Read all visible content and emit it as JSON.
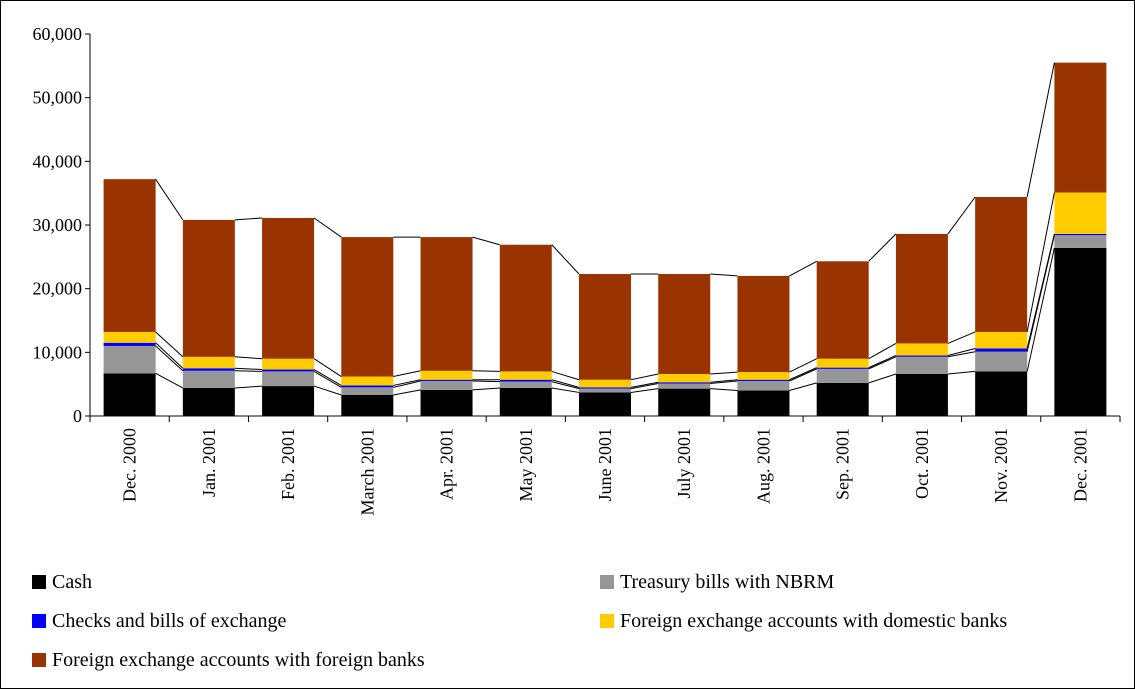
{
  "chart_data": {
    "type": "stacked_bar",
    "categories": [
      "Dec. 2000",
      "Jan. 2001",
      "Feb. 2001",
      "March 2001",
      "Apr. 2001",
      "May 2001",
      "June 2001",
      "July 2001",
      "Aug. 2001",
      "Sep. 2001",
      "Oct. 2001",
      "Nov. 2001",
      "Dec. 2001"
    ],
    "series": [
      {
        "name": "Cash",
        "color": "#000000",
        "values": [
          6700,
          4400,
          4700,
          3300,
          4100,
          4400,
          3700,
          4300,
          4000,
          5200,
          6600,
          7000,
          26400
        ]
      },
      {
        "name": "Treasury bills with NBRM",
        "color": "#969696",
        "values": [
          4300,
          2700,
          2300,
          1200,
          1400,
          1000,
          600,
          800,
          1500,
          2200,
          2700,
          3100,
          2000
        ]
      },
      {
        "name": "Checks and bills of exchange",
        "color": "#0000ff",
        "values": [
          500,
          400,
          300,
          300,
          200,
          300,
          200,
          200,
          200,
          200,
          200,
          500,
          200
        ]
      },
      {
        "name": "Foreign exchange accounts with domestic banks",
        "color": "#ffcc00",
        "values": [
          1700,
          1800,
          1700,
          1400,
          1400,
          1300,
          1200,
          1300,
          1200,
          1400,
          1900,
          2600,
          6500
        ]
      },
      {
        "name": "Foreign exchange accounts with foreign banks",
        "color": "#993300",
        "values": [
          24000,
          21500,
          22100,
          21900,
          21000,
          19900,
          16600,
          15700,
          15100,
          15300,
          17200,
          21200,
          20400
        ]
      }
    ],
    "ylim": [
      0,
      60000
    ],
    "yticks": [
      0,
      {
        "value": 10000,
        "label": "10,000"
      },
      {
        "value": 20000,
        "label": "20,000"
      },
      {
        "value": 30000,
        "label": "30,000"
      },
      {
        "value": 40000,
        "label": "40,000"
      },
      {
        "value": 50000,
        "label": "50,000"
      },
      {
        "value": 60000,
        "label": "60,000"
      }
    ],
    "grid": false,
    "legend": "bottom"
  }
}
